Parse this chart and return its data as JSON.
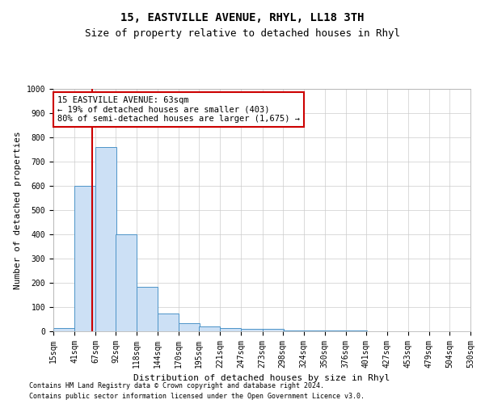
{
  "title": "15, EASTVILLE AVENUE, RHYL, LL18 3TH",
  "subtitle": "Size of property relative to detached houses in Rhyl",
  "xlabel": "Distribution of detached houses by size in Rhyl",
  "ylabel": "Number of detached properties",
  "footnote1": "Contains HM Land Registry data © Crown copyright and database right 2024.",
  "footnote2": "Contains public sector information licensed under the Open Government Licence v3.0.",
  "bins": [
    15,
    41,
    67,
    92,
    118,
    144,
    170,
    195,
    221,
    247,
    273,
    298,
    324,
    350,
    376,
    401,
    427,
    453,
    479,
    504,
    530
  ],
  "bin_labels": [
    "15sqm",
    "41sqm",
    "67sqm",
    "92sqm",
    "118sqm",
    "144sqm",
    "170sqm",
    "195sqm",
    "221sqm",
    "247sqm",
    "273sqm",
    "298sqm",
    "324sqm",
    "350sqm",
    "376sqm",
    "401sqm",
    "427sqm",
    "453sqm",
    "479sqm",
    "504sqm",
    "530sqm"
  ],
  "counts": [
    15,
    600,
    760,
    400,
    185,
    75,
    35,
    20,
    15,
    10,
    10,
    5,
    5,
    5,
    5,
    0,
    0,
    0,
    0,
    0
  ],
  "bar_color": "#cce0f5",
  "bar_edge_color": "#4d94c8",
  "property_size": 63,
  "red_line_color": "#cc0000",
  "annotation_line1": "15 EASTVILLE AVENUE: 63sqm",
  "annotation_line2": "← 19% of detached houses are smaller (403)",
  "annotation_line3": "80% of semi-detached houses are larger (1,675) →",
  "annotation_box_color": "#cc0000",
  "ylim": [
    0,
    1000
  ],
  "yticks": [
    0,
    100,
    200,
    300,
    400,
    500,
    600,
    700,
    800,
    900,
    1000
  ],
  "title_fontsize": 10,
  "subtitle_fontsize": 9,
  "axis_label_fontsize": 8,
  "tick_fontsize": 7,
  "annotation_fontsize": 7.5,
  "footnote_fontsize": 6,
  "background_color": "#ffffff",
  "grid_color": "#cccccc"
}
